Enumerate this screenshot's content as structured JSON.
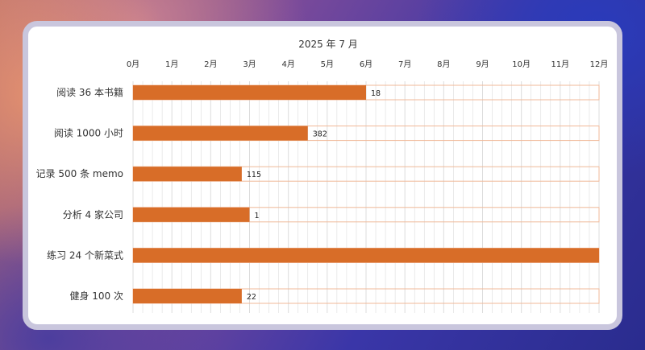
{
  "chart_data": {
    "type": "bar",
    "orientation": "horizontal",
    "title": "2025 年 7 月",
    "x_ticks": [
      "0月",
      "1月",
      "2月",
      "3月",
      "4月",
      "5月",
      "6月",
      "7月",
      "8月",
      "9月",
      "10月",
      "11月",
      "12月"
    ],
    "xlim": [
      0,
      12
    ],
    "grid": true,
    "categories": [
      "阅读 36 本书籍",
      "阅读 1000 小时",
      "记录 500 条 memo",
      "分析 4 家公司",
      "练习 24 个新菜式",
      "健身 100 次"
    ],
    "values": [
      6,
      4.5,
      2.8,
      3.0,
      12,
      2.8
    ],
    "value_labels": [
      "18",
      "382",
      "115",
      "1",
      "",
      "22"
    ],
    "colors": {
      "bar": "#d86d28",
      "track_border": "#f0b898",
      "grid": "#dcdcdc"
    }
  }
}
